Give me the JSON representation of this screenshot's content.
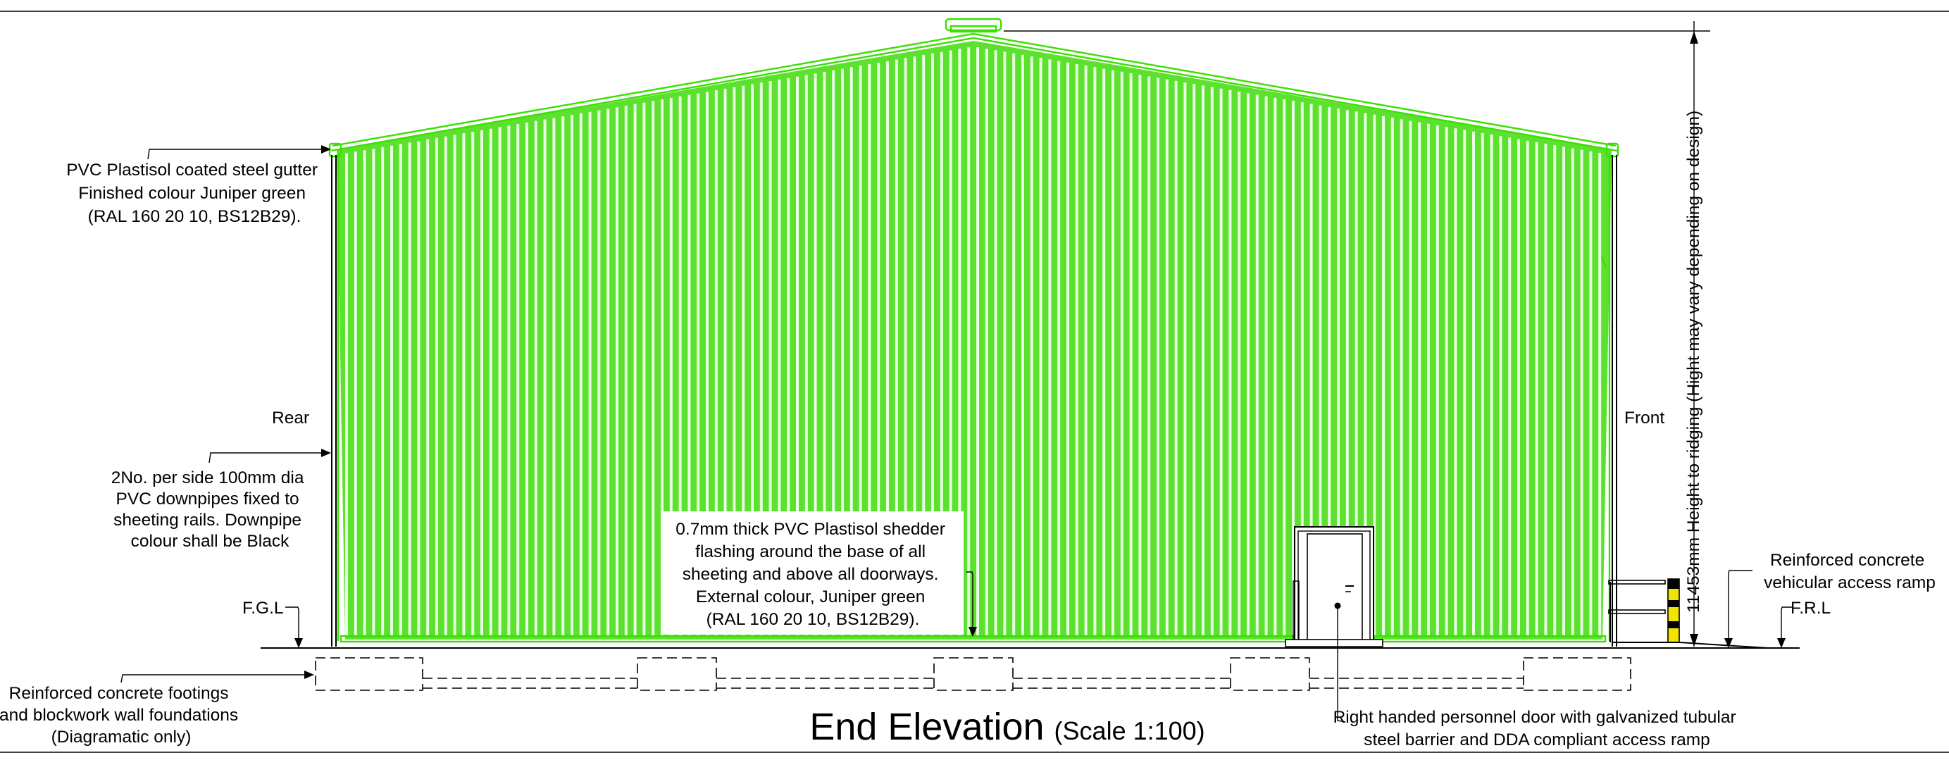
{
  "drawing": {
    "title": "End Elevation",
    "scale": "(Scale 1:100)",
    "side_left": "Rear",
    "side_right": "Front",
    "fgl": "F.G.L",
    "frl": "F.R.L",
    "height_dimension": "11453mm Height to ridging (Hight may vary depending on design)"
  },
  "annotations": {
    "gutter": [
      "PVC Plastisol coated steel gutter",
      "Finished colour Juniper green",
      "(RAL 160 20 10, BS12B29)."
    ],
    "downpipes": [
      "2No. per side 100mm dia",
      "PVC downpipes fixed to",
      "sheeting rails. Downpipe",
      "colour shall be Black"
    ],
    "flashing": [
      "0.7mm thick PVC Plastisol shedder",
      "flashing around the base of all",
      "sheeting and above all doorways.",
      "External colour, Juniper green",
      "(RAL 160 20 10, BS12B29)."
    ],
    "footings": [
      "Reinforced concrete footings",
      "and blockwork wall foundations",
      "(Diagramatic only)"
    ],
    "door": [
      "Right handed personnel door with galvanized tubular",
      "steel barrier and DDA compliant access ramp"
    ],
    "ramp": [
      "Reinforced concrete",
      "vehicular access ramp"
    ]
  },
  "colors": {
    "cladding": "#5ce22e",
    "cladding_rib": "#e6ffe0",
    "outline": "#39e000",
    "linework": "#000000",
    "bollard_yellow": "#f2e600"
  }
}
